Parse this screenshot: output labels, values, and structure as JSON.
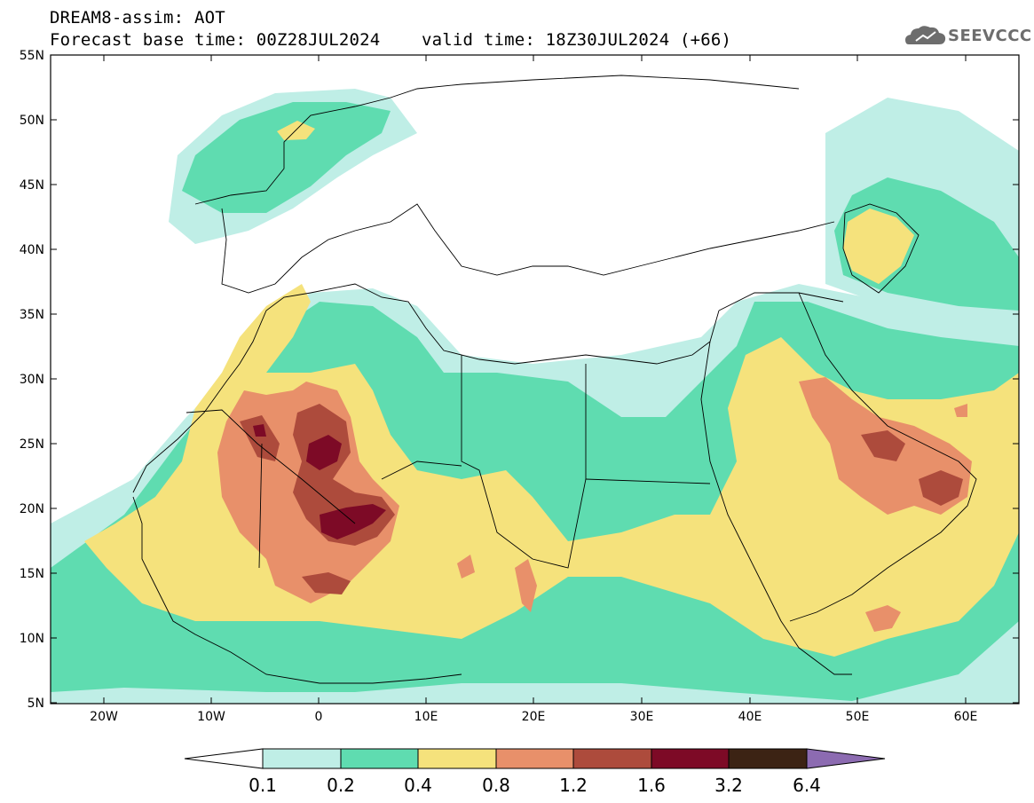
{
  "header": {
    "model_line": "DREAM8-assim: AOT",
    "forecast_line": "Forecast base time: 00Z28JUL2024    valid time: 18Z30JUL2024 (+66)"
  },
  "logo": {
    "text": "SEEVCCC",
    "icon": "cloud-icon"
  },
  "map": {
    "lat_labels": [
      "55N",
      "50N",
      "45N",
      "40N",
      "35N",
      "30N",
      "25N",
      "20N",
      "15N",
      "10N",
      "5N"
    ],
    "lon_labels": [
      "20W",
      "10W",
      "0",
      "10E",
      "20E",
      "30E",
      "40E",
      "50E",
      "60E"
    ]
  },
  "legend": {
    "bins": [
      {
        "color": "#bfeee6"
      },
      {
        "color": "#5fdcb0"
      },
      {
        "color": "#f5e27c"
      },
      {
        "color": "#e8906a"
      },
      {
        "color": "#ad4b3c"
      },
      {
        "color": "#7d0a26"
      },
      {
        "color": "#3c2314"
      }
    ],
    "over_color": "#8c6bb1",
    "under_color": "#ffffff",
    "ticks": [
      "0.1",
      "0.2",
      "0.4",
      "0.8",
      "1.2",
      "1.6",
      "3.2",
      "6.4"
    ]
  }
}
